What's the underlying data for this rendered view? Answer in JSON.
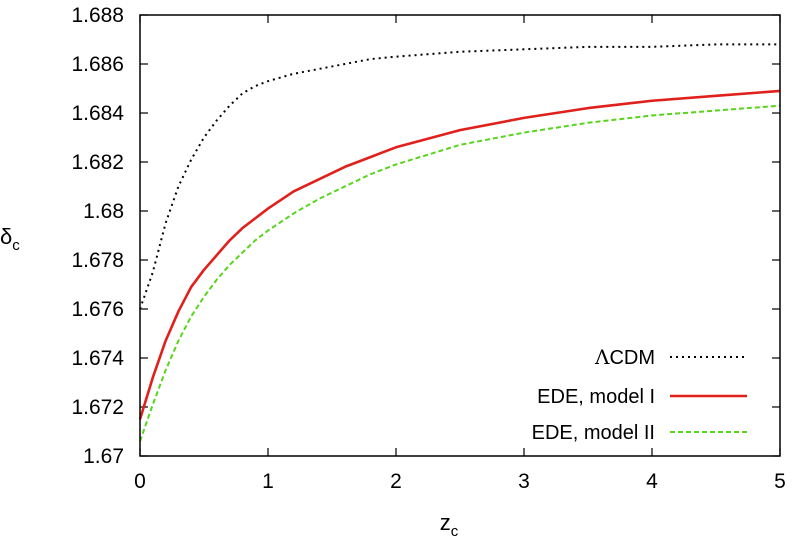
{
  "chart_data": {
    "type": "line",
    "xlabel": {
      "main": "z",
      "sub": "c"
    },
    "ylabel": {
      "main": "δ",
      "sub": "c"
    },
    "xlim": [
      0,
      5
    ],
    "ylim": [
      1.67,
      1.688
    ],
    "x_ticks": [
      "0",
      "1",
      "2",
      "3",
      "4",
      "5"
    ],
    "y_ticks": [
      "1.67",
      "1.672",
      "1.674",
      "1.676",
      "1.678",
      "1.68",
      "1.682",
      "1.684",
      "1.686",
      "1.688"
    ],
    "grid": false,
    "legend_position": "bottom-right",
    "series": [
      {
        "name": "ΛCDM",
        "name_symbol": "Λ",
        "name_rest": "CDM",
        "color": "#000000",
        "style": "dotted",
        "x": [
          0,
          0.1,
          0.2,
          0.3,
          0.4,
          0.5,
          0.6,
          0.7,
          0.8,
          0.9,
          1.0,
          1.2,
          1.4,
          1.6,
          1.8,
          2.0,
          2.5,
          3.0,
          3.5,
          4.0,
          4.5,
          5.0
        ],
        "y": [
          1.676,
          1.6775,
          1.6795,
          1.681,
          1.6821,
          1.683,
          1.6837,
          1.6843,
          1.6848,
          1.6851,
          1.6853,
          1.6856,
          1.6858,
          1.686,
          1.6862,
          1.6863,
          1.6865,
          1.6866,
          1.6867,
          1.6867,
          1.6868,
          1.6868
        ]
      },
      {
        "name": "EDE, model I",
        "color": "#e0201b",
        "style": "solid",
        "x": [
          0,
          0.1,
          0.2,
          0.3,
          0.4,
          0.5,
          0.6,
          0.7,
          0.8,
          0.9,
          1.0,
          1.2,
          1.4,
          1.6,
          1.8,
          2.0,
          2.5,
          3.0,
          3.5,
          4.0,
          4.5,
          5.0
        ],
        "y": [
          1.6715,
          1.6732,
          1.6747,
          1.6759,
          1.6769,
          1.6776,
          1.6782,
          1.6788,
          1.6793,
          1.6797,
          1.6801,
          1.6808,
          1.6813,
          1.6818,
          1.6822,
          1.6826,
          1.6833,
          1.6838,
          1.6842,
          1.6845,
          1.6847,
          1.6849
        ]
      },
      {
        "name": "EDE, model II",
        "color": "#58d41c",
        "style": "dashed",
        "x": [
          0,
          0.1,
          0.2,
          0.3,
          0.4,
          0.5,
          0.6,
          0.7,
          0.8,
          0.9,
          1.0,
          1.2,
          1.4,
          1.6,
          1.8,
          2.0,
          2.5,
          3.0,
          3.5,
          4.0,
          4.5,
          5.0
        ],
        "y": [
          1.6706,
          1.6721,
          1.6735,
          1.6747,
          1.6757,
          1.6765,
          1.6772,
          1.6778,
          1.6783,
          1.6788,
          1.6792,
          1.6799,
          1.6805,
          1.681,
          1.6815,
          1.6819,
          1.6827,
          1.6832,
          1.6836,
          1.6839,
          1.6841,
          1.6843
        ]
      }
    ]
  }
}
